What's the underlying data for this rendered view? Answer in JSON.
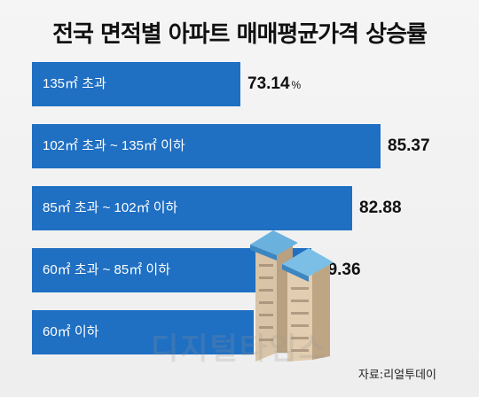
{
  "chart_data": {
    "type": "bar",
    "orientation": "horizontal",
    "title": "전국 면적별 아파트 매매평균가격 상승률",
    "categories": [
      "135㎡ 초과",
      "102㎡ 초과 ~ 135㎡ 이하",
      "85㎡ 초과 ~ 102㎡ 이하",
      "60㎡ 초과 ~ 85㎡ 이하",
      "60㎡ 이하"
    ],
    "values": [
      73.14,
      85.37,
      82.88,
      79.36,
      74.29
    ],
    "value_labels": [
      "73.14",
      "85.37",
      "82.88",
      "79.36",
      "74.29"
    ],
    "unit": "%",
    "xlim": [
      55,
      87
    ],
    "grid": false,
    "colors": {
      "bar": "#1f6fc2"
    }
  },
  "watermark": "디지털타임스",
  "source": "자료:리얼투데이"
}
